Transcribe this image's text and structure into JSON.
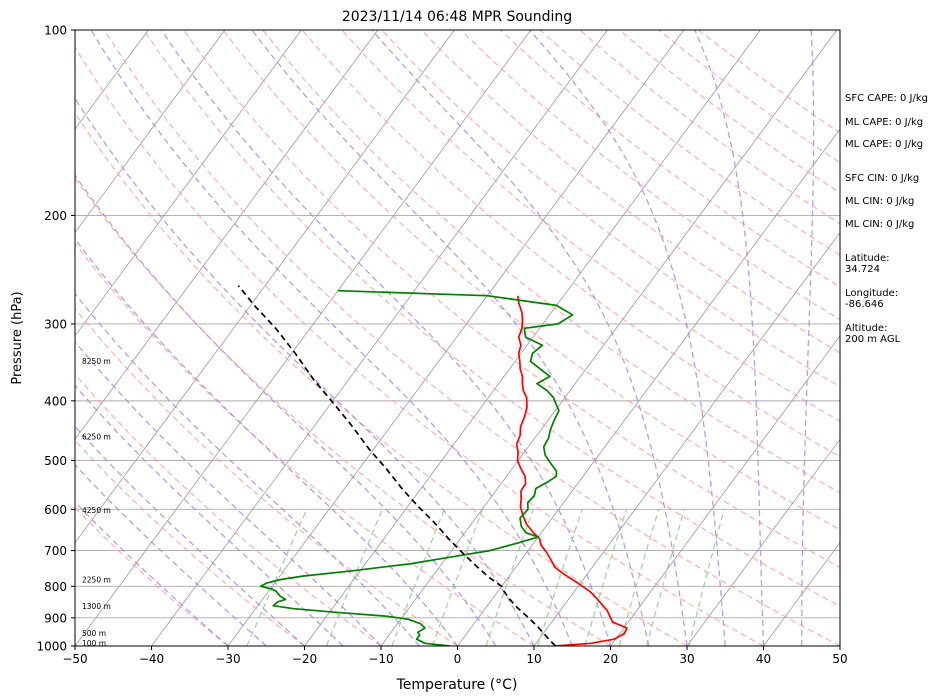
{
  "chart_data": {
    "type": "line",
    "title": "2023/11/14 06:48 MPR Sounding",
    "xlabel": "Temperature (°C)",
    "ylabel": "Pressure (hPa)",
    "xlim": [
      -50,
      50
    ],
    "ylim": [
      1000,
      100
    ],
    "y_scale": "log",
    "skew": true,
    "grid": true,
    "x_ticks": [
      "−50",
      "−40",
      "−30",
      "−20",
      "−10",
      "0",
      "10",
      "20",
      "30",
      "40",
      "50"
    ],
    "y_ticks": [
      {
        "p": 100,
        "label": "100"
      },
      {
        "p": 200,
        "label": "200"
      },
      {
        "p": 300,
        "label": "300"
      },
      {
        "p": 400,
        "label": "400"
      },
      {
        "p": 500,
        "label": "500"
      },
      {
        "p": 600,
        "label": "600"
      },
      {
        "p": 700,
        "label": "700"
      },
      {
        "p": 800,
        "label": "800"
      },
      {
        "p": 900,
        "label": "900"
      },
      {
        "p": 1000,
        "label": "1000"
      }
    ],
    "height_labels": [
      {
        "p": 990,
        "label": "100 m"
      },
      {
        "p": 955,
        "label": "500 m"
      },
      {
        "p": 862,
        "label": "1300 m"
      },
      {
        "p": 782,
        "label": "2250 m"
      },
      {
        "p": 603,
        "label": "4250 m"
      },
      {
        "p": 458,
        "label": "6250 m"
      },
      {
        "p": 345,
        "label": "8250 m"
      }
    ],
    "series": [
      {
        "color": "#ff0000",
        "style": "solid",
        "points": [
          [
            12.8,
            1000
          ],
          [
            17.2,
            990
          ],
          [
            19.8,
            975
          ],
          [
            20.6,
            955
          ],
          [
            20.4,
            935
          ],
          [
            18.0,
            915
          ],
          [
            16.8,
            890
          ],
          [
            16.1,
            875
          ],
          [
            15.1,
            860
          ],
          [
            13.8,
            840
          ],
          [
            12.0,
            815
          ],
          [
            9.6,
            790
          ],
          [
            7.0,
            765
          ],
          [
            5.1,
            745
          ],
          [
            3.9,
            725
          ],
          [
            2.6,
            705
          ],
          [
            1.1,
            685
          ],
          [
            0.4,
            670
          ],
          [
            -1.0,
            655
          ],
          [
            -2.7,
            635
          ],
          [
            -4.0,
            615
          ],
          [
            -5.2,
            595
          ],
          [
            -6.0,
            575
          ],
          [
            -6.7,
            560
          ],
          [
            -6.8,
            545
          ],
          [
            -7.6,
            530
          ],
          [
            -8.9,
            515
          ],
          [
            -10.1,
            500
          ],
          [
            -10.8,
            485
          ],
          [
            -11.8,
            470
          ],
          [
            -12.2,
            455
          ],
          [
            -13.0,
            440
          ],
          [
            -13.4,
            425
          ],
          [
            -14.0,
            410
          ],
          [
            -15.0,
            395
          ],
          [
            -16.1,
            385
          ],
          [
            -16.9,
            375
          ],
          [
            -17.6,
            365
          ],
          [
            -18.6,
            355
          ],
          [
            -19.4,
            345
          ],
          [
            -20.3,
            335
          ],
          [
            -20.8,
            325
          ],
          [
            -21.9,
            315
          ],
          [
            -22.3,
            305
          ],
          [
            -23.1,
            295
          ],
          [
            -23.9,
            287
          ],
          [
            -25.1,
            278
          ],
          [
            -26.0,
            270
          ]
        ]
      },
      {
        "color": "#008000",
        "style": "solid",
        "points": [
          [
            -1.0,
            1000
          ],
          [
            -4.5,
            990
          ],
          [
            -6.0,
            975
          ],
          [
            -6.0,
            960
          ],
          [
            -6.5,
            950
          ],
          [
            -6.0,
            935
          ],
          [
            -7.0,
            920
          ],
          [
            -9.0,
            905
          ],
          [
            -12.0,
            895
          ],
          [
            -20.0,
            880
          ],
          [
            -25.0,
            870
          ],
          [
            -28.0,
            860
          ],
          [
            -27.8,
            848
          ],
          [
            -27.0,
            840
          ],
          [
            -28.0,
            830
          ],
          [
            -29.0,
            815
          ],
          [
            -29.8,
            808
          ],
          [
            -31.5,
            800
          ],
          [
            -31.0,
            790
          ],
          [
            -29.5,
            780
          ],
          [
            -27.0,
            770
          ],
          [
            -21.0,
            755
          ],
          [
            -14.0,
            735
          ],
          [
            -9.0,
            715
          ],
          [
            -5.0,
            700
          ],
          [
            -2.0,
            680
          ],
          [
            0.0,
            665
          ],
          [
            -2.0,
            655
          ],
          [
            -3.2,
            640
          ],
          [
            -4.2,
            620
          ],
          [
            -4.0,
            600
          ],
          [
            -4.7,
            585
          ],
          [
            -4.5,
            570
          ],
          [
            -5.0,
            555
          ],
          [
            -4.0,
            540
          ],
          [
            -3.5,
            530
          ],
          [
            -4.0,
            520
          ],
          [
            -5.0,
            510
          ],
          [
            -6.0,
            500
          ],
          [
            -7.0,
            490
          ],
          [
            -8.0,
            475
          ],
          [
            -8.2,
            460
          ],
          [
            -8.8,
            445
          ],
          [
            -9.2,
            430
          ],
          [
            -9.5,
            415
          ],
          [
            -10.5,
            405
          ],
          [
            -11.5,
            395
          ],
          [
            -13.0,
            385
          ],
          [
            -15.0,
            375
          ],
          [
            -14.0,
            365
          ],
          [
            -16.0,
            355
          ],
          [
            -18.0,
            345
          ],
          [
            -18.5,
            335
          ],
          [
            -18.0,
            325
          ],
          [
            -21.0,
            315
          ],
          [
            -22.0,
            305
          ],
          [
            -18.0,
            300
          ],
          [
            -17.0,
            290
          ],
          [
            -20.0,
            280
          ],
          [
            -30.0,
            270
          ],
          [
            -50.0,
            265
          ]
        ]
      },
      {
        "color": "#000000",
        "style": "dashed",
        "points": [
          [
            12.8,
            1000
          ],
          [
            10.7,
            965
          ],
          [
            8.6,
            930
          ],
          [
            6.2,
            895
          ],
          [
            4.0,
            865
          ],
          [
            2.0,
            835
          ],
          [
            0.8,
            815
          ],
          [
            0.0,
            800
          ],
          [
            -2.4,
            775
          ],
          [
            -5.0,
            745
          ],
          [
            -8.0,
            710
          ],
          [
            -11.5,
            670
          ],
          [
            -15.0,
            630
          ],
          [
            -18.5,
            595
          ],
          [
            -22.5,
            555
          ],
          [
            -26.5,
            515
          ],
          [
            -30.5,
            480
          ],
          [
            -35.0,
            440
          ],
          [
            -39.5,
            405
          ],
          [
            -44.5,
            370
          ],
          [
            -49.5,
            335
          ],
          [
            -54.5,
            305
          ],
          [
            -59.5,
            280
          ],
          [
            -63.5,
            260
          ]
        ]
      }
    ],
    "annotations": [
      {
        "key": "sfc_cape",
        "text": "SFC CAPE: 0 J/kg"
      },
      {
        "key": "ml_cape_1",
        "text": "ML CAPE: 0 J/kg"
      },
      {
        "key": "ml_cape_2",
        "text": "ML CAPE: 0 J/kg"
      },
      {
        "key": "sfc_cin",
        "text": "SFC CIN: 0 J/kg"
      },
      {
        "key": "ml_cin_1",
        "text": "ML CIN: 0 J/kg"
      },
      {
        "key": "ml_cin_2",
        "text": "ML CIN: 0 J/kg"
      },
      {
        "key": "latitude",
        "text": "Latitude:\n34.724"
      },
      {
        "key": "longitude",
        "text": "Longitude:\n-86.646"
      },
      {
        "key": "altitude",
        "text": "Altitude:\n200 m AGL"
      }
    ],
    "reference_lines": {
      "isotherms_color": "#999999",
      "dry_adiabats_color": "#ff9999",
      "moist_adiabats_color": "#9988ee",
      "mixing_ratio_color": "#88cc88"
    }
  }
}
